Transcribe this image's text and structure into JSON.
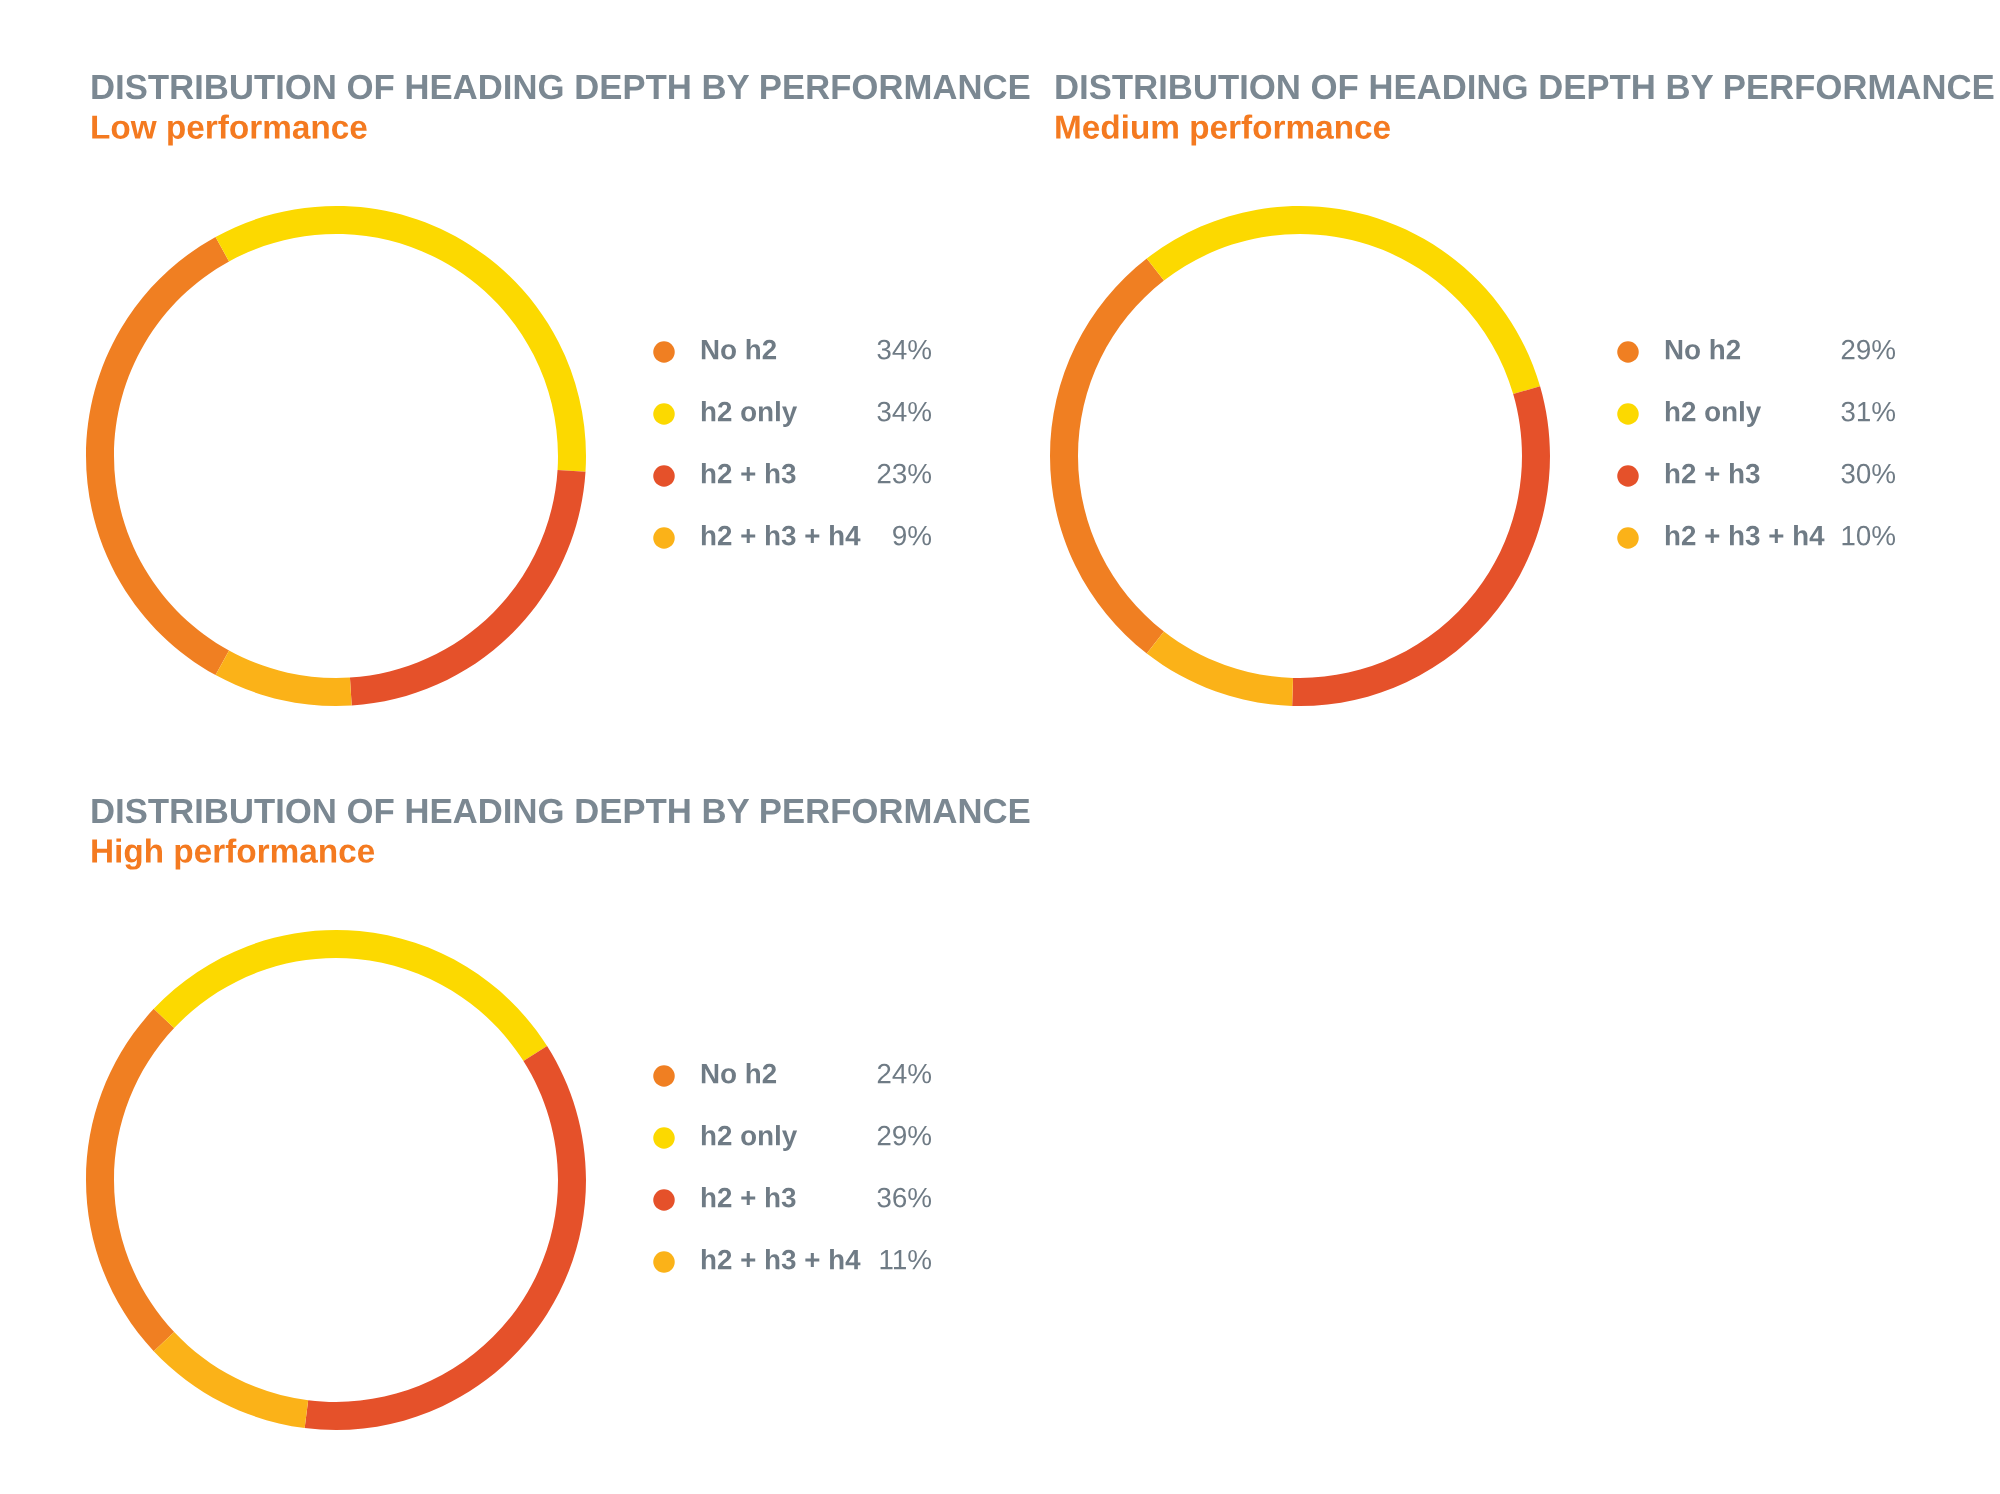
{
  "chart_data": [
    {
      "type": "donut",
      "title": "DISTRIBUTION OF HEADING DEPTH BY PERFORMANCE",
      "subtitle": "Low performance",
      "categories": [
        "No h2",
        "h2 only",
        "h2 + h3",
        "h2 + h3 + h4"
      ],
      "values": [
        34,
        34,
        23,
        9
      ],
      "value_labels": [
        "34%",
        "34%",
        "23%",
        "9%"
      ],
      "colors": [
        "#f07f22",
        "#fcd900",
        "#e5512a",
        "#fbb218"
      ],
      "legend": "right"
    },
    {
      "type": "donut",
      "title": "DISTRIBUTION OF HEADING DEPTH BY PERFORMANCE",
      "subtitle": "Medium performance",
      "categories": [
        "No h2",
        "h2 only",
        "h2 + h3",
        "h2 + h3 + h4"
      ],
      "values": [
        29,
        31,
        30,
        10
      ],
      "value_labels": [
        "29%",
        "31%",
        "30%",
        "10%"
      ],
      "colors": [
        "#f07f22",
        "#fcd900",
        "#e5512a",
        "#fbb218"
      ],
      "legend": "right"
    },
    {
      "type": "donut",
      "title": "DISTRIBUTION OF HEADING DEPTH BY PERFORMANCE",
      "subtitle": "High performance",
      "categories": [
        "No h2",
        "h2 only",
        "h2 + h3",
        "h2 + h3 + h4"
      ],
      "values": [
        24,
        29,
        36,
        11
      ],
      "value_labels": [
        "24%",
        "29%",
        "36%",
        "11%"
      ],
      "colors": [
        "#f07f22",
        "#fcd900",
        "#e5512a",
        "#fbb218"
      ],
      "legend": "right"
    }
  ]
}
